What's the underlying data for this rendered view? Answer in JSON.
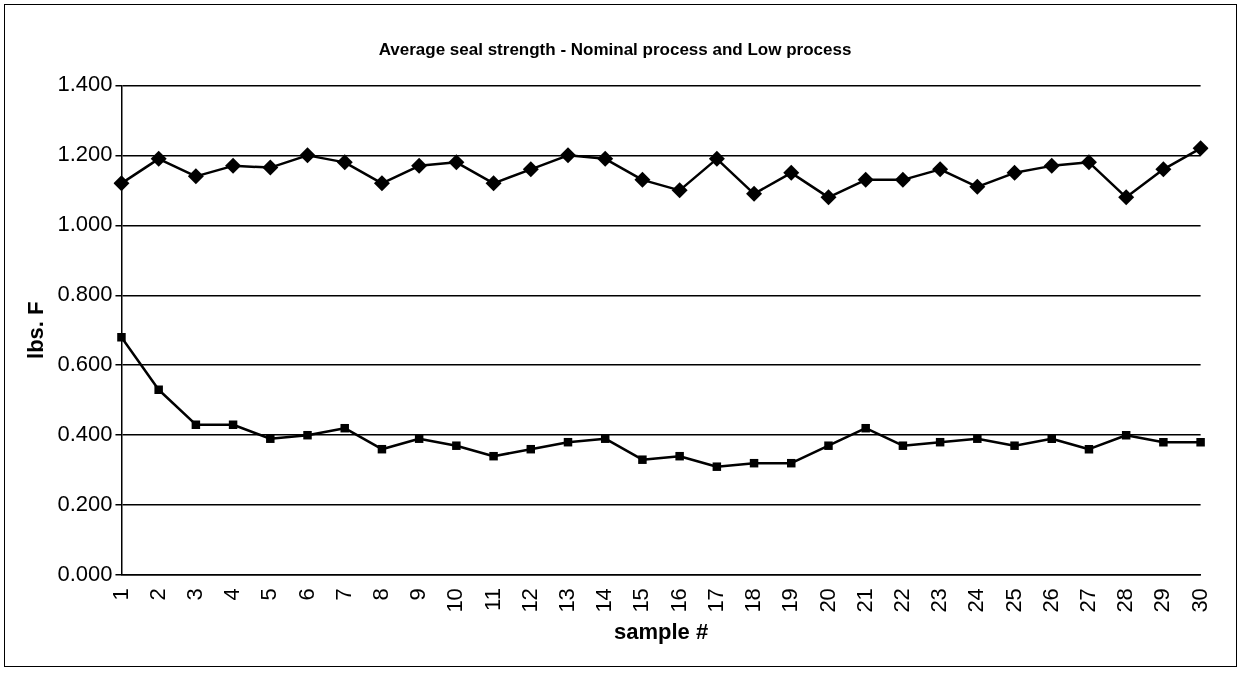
{
  "chart_data": {
    "type": "line",
    "title": "Average seal strength - Nominal process and Low process",
    "xlabel": "sample #",
    "ylabel": "lbs. F",
    "categories": [
      "1",
      "2",
      "3",
      "4",
      "5",
      "6",
      "7",
      "8",
      "9",
      "10",
      "11",
      "12",
      "13",
      "14",
      "15",
      "16",
      "17",
      "18",
      "19",
      "20",
      "21",
      "22",
      "23",
      "24",
      "25",
      "26",
      "27",
      "28",
      "29",
      "30"
    ],
    "series": [
      {
        "color": "#000000",
        "marker": "diamond",
        "values": [
          1.12,
          1.19,
          1.14,
          1.17,
          1.165,
          1.2,
          1.18,
          1.12,
          1.17,
          1.18,
          1.12,
          1.16,
          1.2,
          1.19,
          1.13,
          1.1,
          1.19,
          1.09,
          1.15,
          1.08,
          1.13,
          1.13,
          1.16,
          1.11,
          1.15,
          1.17,
          1.18,
          1.08,
          1.16,
          1.22
        ]
      },
      {
        "color": "#000000",
        "marker": "square",
        "values": [
          0.68,
          0.53,
          0.43,
          0.43,
          0.39,
          0.4,
          0.42,
          0.36,
          0.39,
          0.37,
          0.34,
          0.36,
          0.38,
          0.39,
          0.33,
          0.34,
          0.31,
          0.32,
          0.32,
          0.37,
          0.42,
          0.37,
          0.38,
          0.39,
          0.37,
          0.39,
          0.36,
          0.4,
          0.38,
          0.38
        ]
      }
    ],
    "ylim": [
      0,
      1.4
    ],
    "yticks": [
      {
        "value": 0,
        "label": "0.000"
      },
      {
        "value": 0.2,
        "label": "0.200"
      },
      {
        "value": 0.4,
        "label": "0.400"
      },
      {
        "value": 0.6,
        "label": "0.600"
      },
      {
        "value": 0.8,
        "label": "0.800"
      },
      {
        "value": 1,
        "label": "1.000"
      },
      {
        "value": 1.2,
        "label": "1.200"
      },
      {
        "value": 1.4,
        "label": "1.400"
      }
    ],
    "grid": "y",
    "line_style": "solid"
  }
}
